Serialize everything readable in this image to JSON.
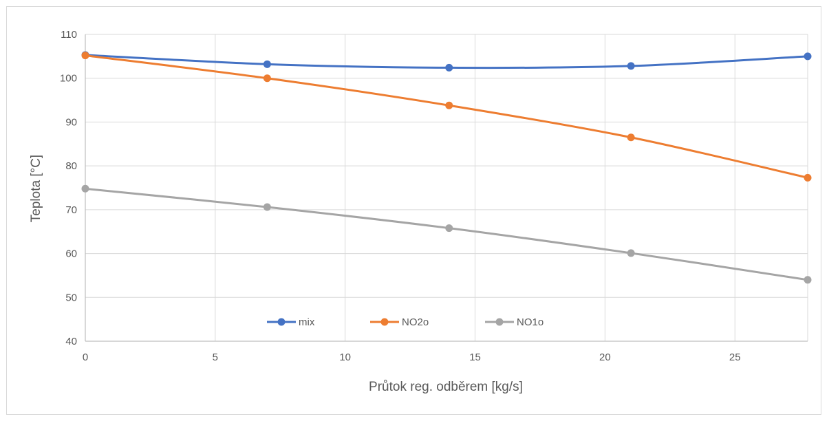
{
  "chart_data": {
    "type": "line",
    "title": "",
    "xlabel": "Průtok reg. odběrem [kg/s]",
    "ylabel": "Teplota [°C]",
    "xlim": [
      0,
      27.8
    ],
    "ylim": [
      40,
      110
    ],
    "xticks": [
      0,
      5,
      10,
      15,
      20,
      25
    ],
    "yticks": [
      40,
      50,
      60,
      70,
      80,
      90,
      100,
      110
    ],
    "grid": true,
    "legend_position": "bottom-inside",
    "x": [
      0,
      7,
      14,
      21,
      27.8
    ],
    "series": [
      {
        "name": "mix",
        "color": "#4472c4",
        "values": [
          105.3,
          103.2,
          102.4,
          102.8,
          105.0
        ]
      },
      {
        "name": "NO2o",
        "color": "#ed7d31",
        "values": [
          105.2,
          100.0,
          93.8,
          86.5,
          77.3
        ]
      },
      {
        "name": "NO1o",
        "color": "#a5a5a5",
        "values": [
          74.8,
          70.6,
          65.8,
          60.1,
          54.0
        ]
      }
    ]
  }
}
